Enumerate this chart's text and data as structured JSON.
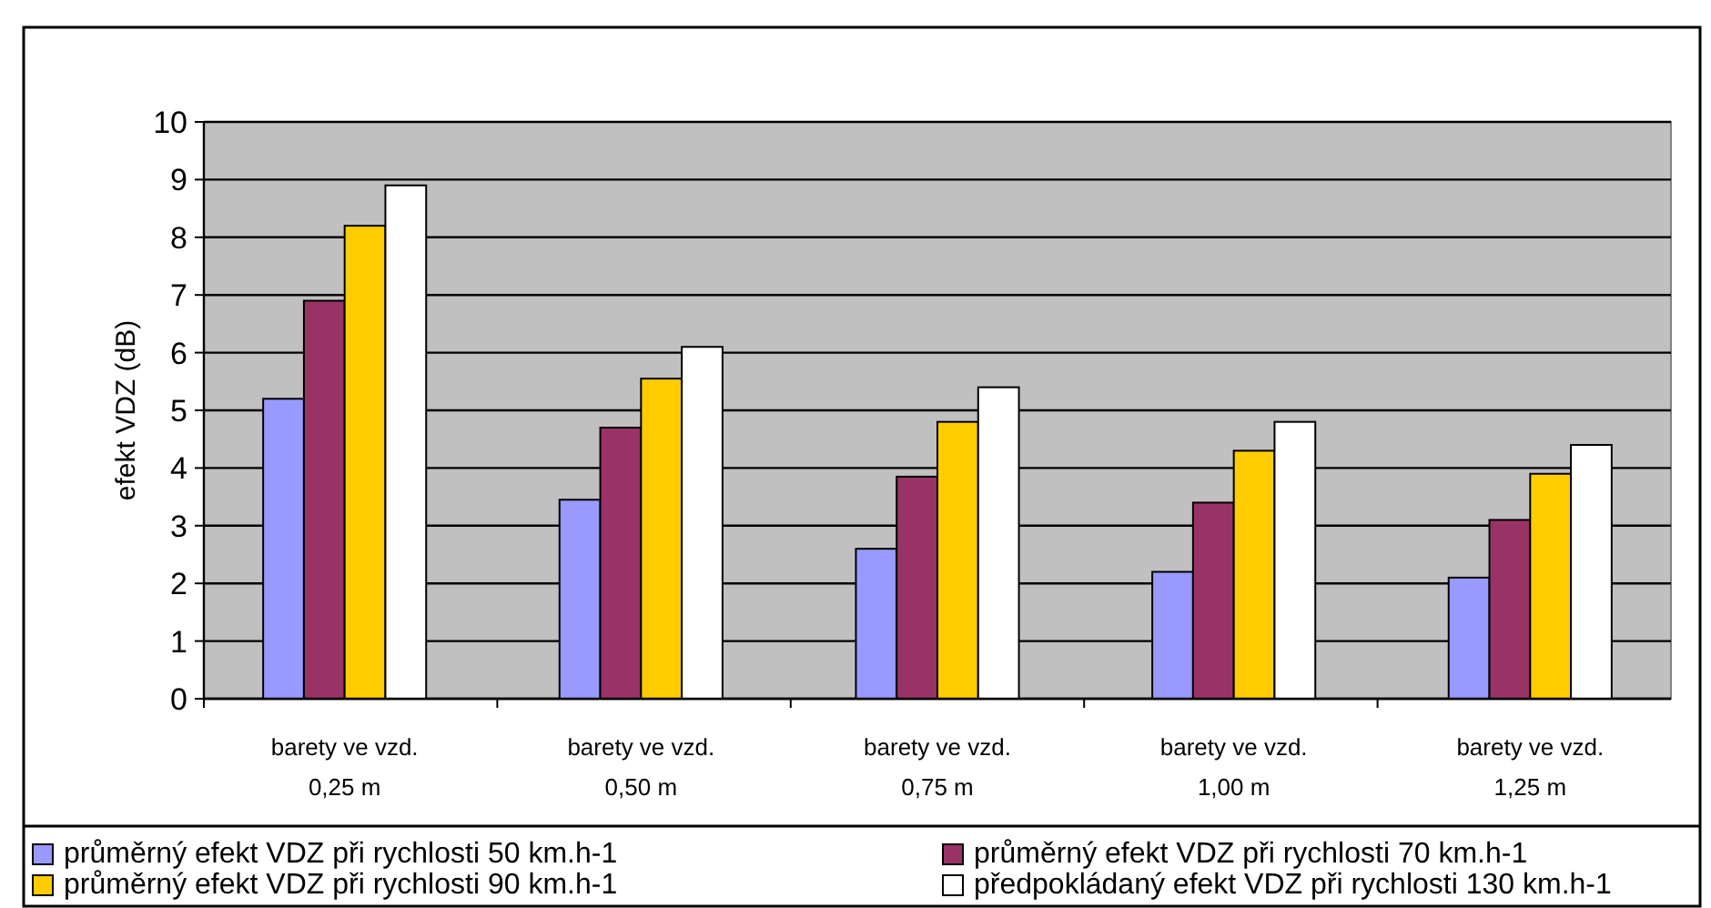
{
  "chart_data": {
    "type": "bar",
    "ylabel": "efekt VDZ (dB)",
    "categories": [
      "barety ve vzd.\n0,25 m",
      "barety ve vzd.\n0,50 m",
      "barety ve vzd.\n0,75 m",
      "barety ve vzd.\n1,00 m",
      "barety ve vzd.\n1,25 m"
    ],
    "series": [
      {
        "name": "průměrný efekt VDZ při rychlosti 50 km.h-1",
        "color": "#9999ff",
        "values": [
          5.2,
          3.45,
          2.6,
          2.2,
          2.1
        ]
      },
      {
        "name": "průměrný efekt VDZ při rychlosti 70 km.h-1",
        "color": "#993366",
        "values": [
          6.9,
          4.7,
          3.85,
          3.4,
          3.1
        ]
      },
      {
        "name": "průměrný efekt VDZ při rychlosti 90 km.h-1",
        "color": "#ffcc00",
        "values": [
          8.2,
          5.55,
          4.8,
          4.3,
          3.9
        ]
      },
      {
        "name": "předpokládaný efekt VDZ při rychlosti 130 km.h-1",
        "color": "#ffffff",
        "values": [
          8.9,
          6.1,
          5.4,
          4.8,
          4.4
        ]
      }
    ],
    "ylim": [
      0,
      10
    ],
    "yticks": [
      0,
      1,
      2,
      3,
      4,
      5,
      6,
      7,
      8,
      9,
      10
    ],
    "grid": "y",
    "legend": "bottom"
  }
}
